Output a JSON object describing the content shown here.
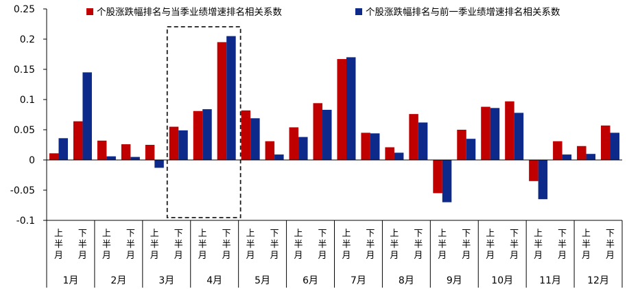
{
  "chart_data": {
    "type": "bar",
    "title": "",
    "xlabel": "",
    "ylabel": "",
    "ylim": [
      -0.1,
      0.25
    ],
    "yticks": [
      "0.25",
      "0.2",
      "0.15",
      "0.1",
      "0.05",
      "0",
      "-0.05",
      "-0.1"
    ],
    "ytick_values": [
      0.25,
      0.2,
      0.15,
      0.1,
      0.05,
      0,
      -0.05,
      -0.1
    ],
    "months": [
      "1月",
      "2月",
      "3月",
      "4月",
      "5月",
      "6月",
      "7月",
      "8月",
      "9月",
      "10月",
      "11月",
      "12月"
    ],
    "halves": [
      "上半月",
      "下半月"
    ],
    "categories": [
      "1月上半月",
      "1月下半月",
      "2月上半月",
      "2月下半月",
      "3月上半月",
      "3月下半月",
      "4月上半月",
      "4月下半月",
      "5月上半月",
      "5月下半月",
      "6月上半月",
      "6月下半月",
      "7月上半月",
      "7月下半月",
      "8月上半月",
      "8月下半月",
      "9月上半月",
      "9月下半月",
      "10月上半月",
      "10月下半月",
      "11月上半月",
      "11月下半月",
      "12月上半月",
      "12月下半月"
    ],
    "series": [
      {
        "name": "个股涨跌幅排名与当季业绩增速排名相关系数",
        "color": "#c00000",
        "values": [
          0.011,
          0.064,
          0.032,
          0.026,
          0.025,
          0.055,
          0.081,
          0.195,
          0.082,
          0.031,
          0.054,
          0.094,
          0.167,
          0.045,
          0.021,
          0.076,
          -0.055,
          0.05,
          0.088,
          0.097,
          -0.035,
          0.031,
          0.023,
          0.057
        ]
      },
      {
        "name": "个股涨跌幅排名与前一季业绩增速排名相关系数",
        "color": "#0d2a8a",
        "values": [
          0.036,
          0.145,
          0.006,
          0.005,
          -0.013,
          0.049,
          0.084,
          0.205,
          0.069,
          0.009,
          0.038,
          0.083,
          0.17,
          0.044,
          0.012,
          0.062,
          -0.07,
          0.035,
          0.086,
          0.078,
          -0.065,
          0.009,
          0.01,
          0.045
        ]
      }
    ],
    "highlight": {
      "month": "4月",
      "style": "dashed-box"
    },
    "grid": false,
    "legend_position": "top"
  }
}
